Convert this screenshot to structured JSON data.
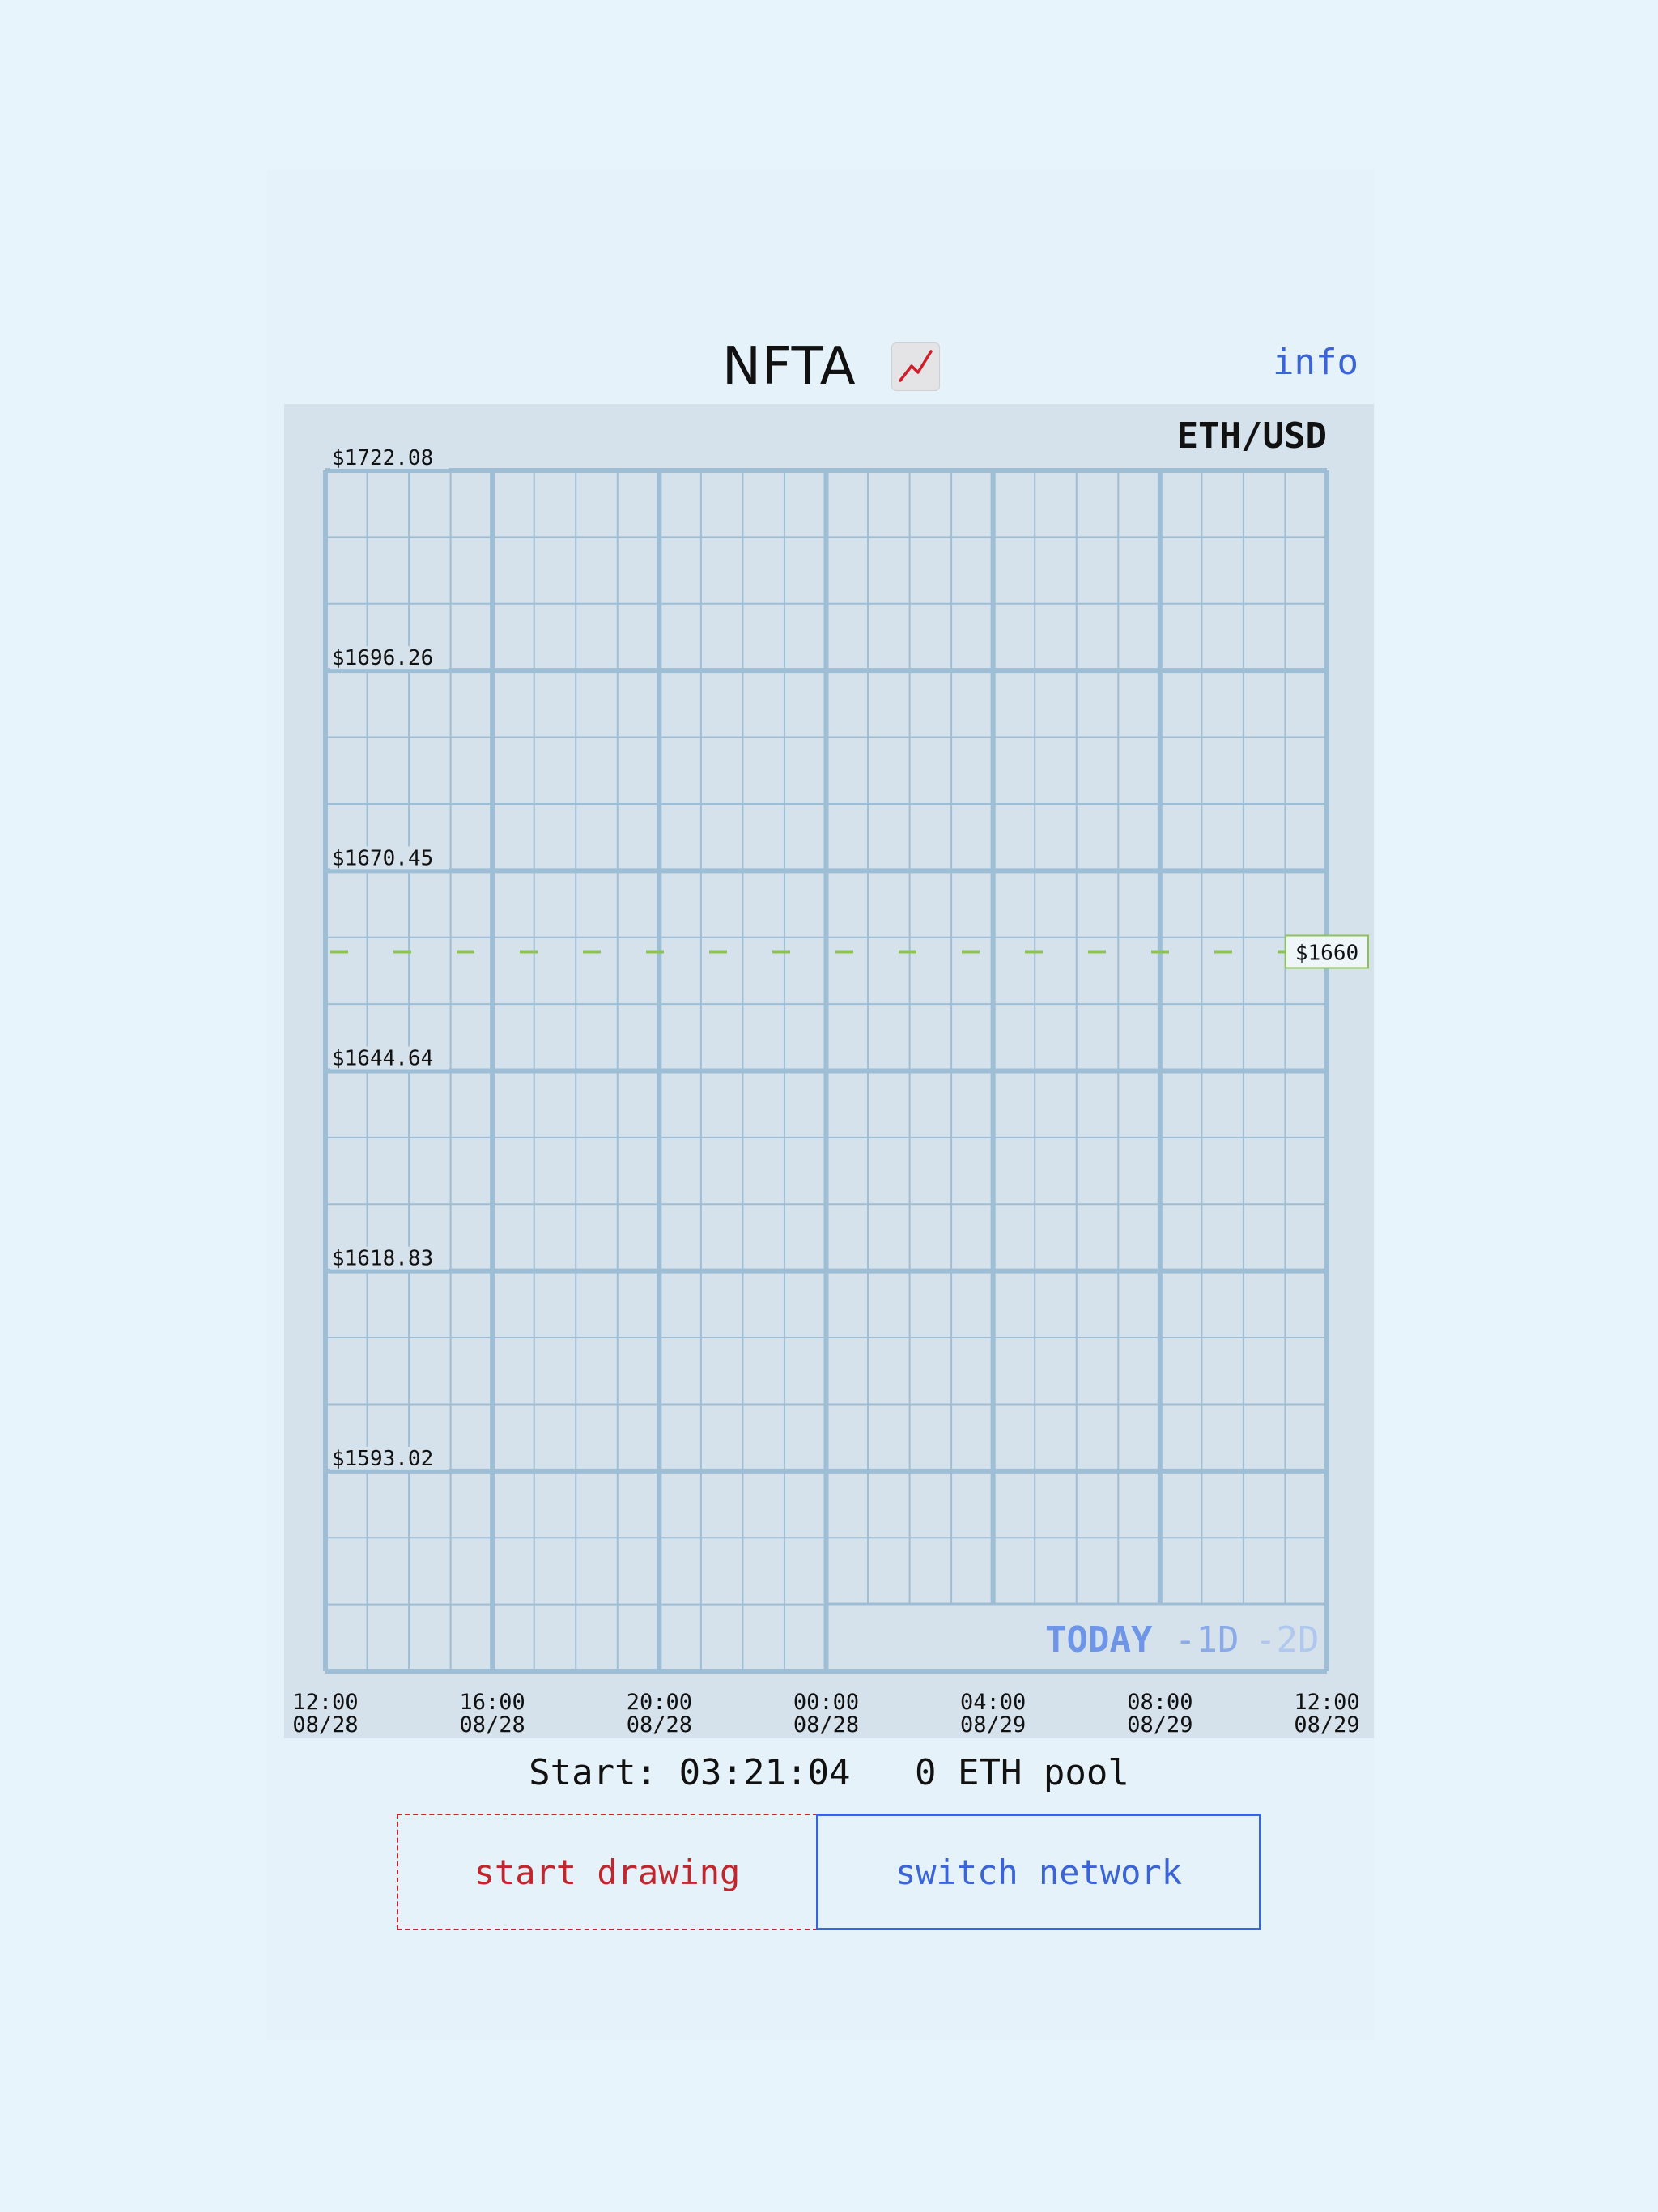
{
  "header": {
    "title": "NFTA",
    "title_icon": "chart-increasing-icon",
    "info_label": "info"
  },
  "chart": {
    "pair": "ETH/USD",
    "range_tabs": [
      "TODAY",
      "-1D",
      "-2D"
    ],
    "active_tab": "TODAY"
  },
  "chart_data": {
    "type": "line",
    "title": "ETH/USD",
    "y_ticks": [
      "$1722.08",
      "$1696.26",
      "$1670.45",
      "$1644.64",
      "$1618.83",
      "$1593.02"
    ],
    "y_tick_values": [
      1722.08,
      1696.26,
      1670.45,
      1644.64,
      1618.83,
      1593.02
    ],
    "ylim": [
      1567.21,
      1722.08
    ],
    "x_ticks": [
      {
        "time": "12:00",
        "date": "08/28"
      },
      {
        "time": "16:00",
        "date": "08/28"
      },
      {
        "time": "20:00",
        "date": "08/28"
      },
      {
        "time": "00:00",
        "date": "08/28"
      },
      {
        "time": "04:00",
        "date": "08/29"
      },
      {
        "time": "08:00",
        "date": "08/29"
      },
      {
        "time": "12:00",
        "date": "08/29"
      }
    ],
    "reference_line": {
      "value": 1660,
      "label": "$1660",
      "style": "dashed",
      "color": "#8fc15a"
    },
    "grid": true,
    "series": []
  },
  "footer": {
    "start_label": "Start:",
    "start_time": "03:21:04",
    "pool_amount": "0",
    "pool_label": "ETH pool"
  },
  "buttons": {
    "start_drawing": "start drawing",
    "switch_network": "switch network"
  },
  "colors": {
    "background": "#e8f4fb",
    "panel": "#d5e2ec",
    "grid": "#9ebed6",
    "reference": "#8fc15a",
    "accent_blue": "#3a64d8",
    "accent_red": "#c0262d"
  }
}
